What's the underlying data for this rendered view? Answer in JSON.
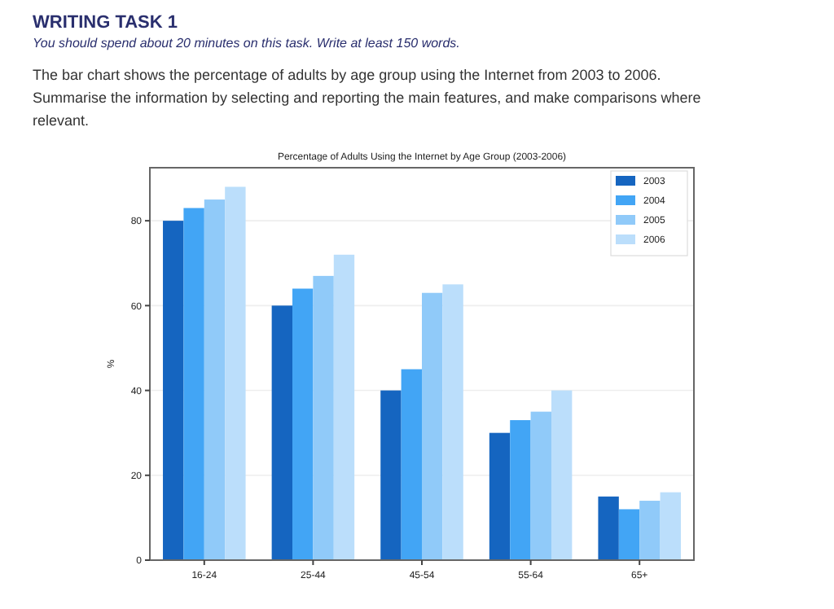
{
  "chart_data": {
    "type": "bar",
    "title": "Percentage of Adults Using the Internet by Age Group (2003-2006)",
    "ylabel": "%",
    "annotations": [
      "WRITING TASK 1",
      "You should spend about 20 minutes on this task. Write at least 150 words.",
      "The bar chart shows the percentage of adults by age group using the Internet from 2003 to 2006. Summarise the information by selecting and reporting the main features, and make comparisons where relevant."
    ],
    "categories": [
      "16-24",
      "25-44",
      "45-54",
      "55-64",
      "65+"
    ],
    "series": [
      {
        "name": "2003",
        "color": "#1565c0",
        "values": [
          80,
          60,
          40,
          30,
          15
        ]
      },
      {
        "name": "2004",
        "color": "#42a5f5",
        "values": [
          83,
          64,
          45,
          33,
          12
        ]
      },
      {
        "name": "2005",
        "color": "#90caf9",
        "values": [
          85,
          67,
          63,
          35,
          14
        ]
      },
      {
        "name": "2006",
        "color": "#bbdefb",
        "values": [
          88,
          72,
          65,
          40,
          16
        ]
      }
    ],
    "ylim": [
      0,
      92.5
    ],
    "yticks": [
      0,
      20,
      40,
      60,
      80
    ],
    "grid": "y",
    "legend": "top right"
  }
}
